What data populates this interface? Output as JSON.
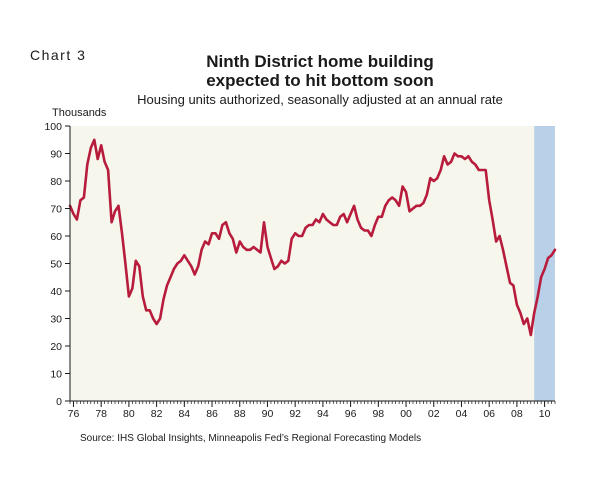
{
  "header": {
    "chart_label": "Chart 3",
    "title_line1": "Ninth District home building",
    "title_line2": "expected to hit bottom soon",
    "subtitle": "Housing units authorized, seasonally adjusted at an annual rate",
    "units_label": "Thousands"
  },
  "source": "Source: IHS Global Insights, Minneapolis Fed’s Regional Forecasting Models",
  "colors": {
    "line": "#b81c3c",
    "plot_background": "#f6f6ec",
    "forecast_band": "#b8d0e8",
    "axis": "#1a1a1a"
  },
  "chart_data": {
    "type": "line",
    "title": "Ninth District home building expected to hit bottom soon",
    "subtitle": "Housing units authorized, seasonally adjusted at an annual rate",
    "ylabel": "Thousands",
    "ylim": [
      0,
      100
    ],
    "yticks": [
      0,
      10,
      20,
      30,
      40,
      50,
      60,
      70,
      80,
      90,
      100
    ],
    "xlim": [
      1975.75,
      2010.75
    ],
    "xticks": [
      1976,
      1978,
      1980,
      1982,
      1984,
      1986,
      1988,
      1990,
      1992,
      1994,
      1996,
      1998,
      2000,
      2002,
      2004,
      2006,
      2008,
      2010
    ],
    "xtick_labels": [
      "76",
      "78",
      "80",
      "82",
      "84",
      "86",
      "88",
      "90",
      "92",
      "94",
      "96",
      "98",
      "00",
      "02",
      "04",
      "06",
      "08",
      "10"
    ],
    "forecast_start": 2009.25,
    "grid": false,
    "legend": "none",
    "x": [
      1975.75,
      1976.0,
      1976.25,
      1976.5,
      1976.75,
      1977.0,
      1977.25,
      1977.5,
      1977.75,
      1978.0,
      1978.25,
      1978.5,
      1978.75,
      1979.0,
      1979.25,
      1979.5,
      1979.75,
      1980.0,
      1980.25,
      1980.5,
      1980.75,
      1981.0,
      1981.25,
      1981.5,
      1981.75,
      1982.0,
      1982.25,
      1982.5,
      1982.75,
      1983.0,
      1983.25,
      1983.5,
      1983.75,
      1984.0,
      1984.25,
      1984.5,
      1984.75,
      1985.0,
      1985.25,
      1985.5,
      1985.75,
      1986.0,
      1986.25,
      1986.5,
      1986.75,
      1987.0,
      1987.25,
      1987.5,
      1987.75,
      1988.0,
      1988.25,
      1988.5,
      1988.75,
      1989.0,
      1989.25,
      1989.5,
      1989.75,
      1990.0,
      1990.25,
      1990.5,
      1990.75,
      1991.0,
      1991.25,
      1991.5,
      1991.75,
      1992.0,
      1992.25,
      1992.5,
      1992.75,
      1993.0,
      1993.25,
      1993.5,
      1993.75,
      1994.0,
      1994.25,
      1994.5,
      1994.75,
      1995.0,
      1995.25,
      1995.5,
      1995.75,
      1996.0,
      1996.25,
      1996.5,
      1996.75,
      1997.0,
      1997.25,
      1997.5,
      1997.75,
      1998.0,
      1998.25,
      1998.5,
      1998.75,
      1999.0,
      1999.25,
      1999.5,
      1999.75,
      2000.0,
      2000.25,
      2000.5,
      2000.75,
      2001.0,
      2001.25,
      2001.5,
      2001.75,
      2002.0,
      2002.25,
      2002.5,
      2002.75,
      2003.0,
      2003.25,
      2003.5,
      2003.75,
      2004.0,
      2004.25,
      2004.5,
      2004.75,
      2005.0,
      2005.25,
      2005.5,
      2005.75,
      2006.0,
      2006.25,
      2006.5,
      2006.75,
      2007.0,
      2007.25,
      2007.5,
      2007.75,
      2008.0,
      2008.25,
      2008.5,
      2008.75,
      2009.0,
      2009.25,
      2009.5,
      2009.75,
      2010.0,
      2010.25,
      2010.5,
      2010.75
    ],
    "values": [
      71,
      68,
      66,
      73,
      74,
      86,
      92,
      95,
      88,
      93,
      87,
      84,
      65,
      69,
      71,
      61,
      50,
      38,
      41,
      51,
      49,
      38,
      33,
      33,
      30,
      28,
      30,
      37,
      42,
      45,
      48,
      50,
      51,
      53,
      51,
      49,
      46,
      49,
      55,
      58,
      57,
      61,
      61,
      59,
      64,
      65,
      61,
      59,
      54,
      58,
      56,
      55,
      55,
      56,
      55,
      54,
      65,
      56,
      52,
      48,
      49,
      51,
      50,
      51,
      59,
      61,
      60,
      60,
      63,
      64,
      64,
      66,
      65,
      68,
      66,
      65,
      64,
      64,
      67,
      68,
      65,
      68,
      71,
      66,
      63,
      62,
      62,
      60,
      64,
      67,
      67,
      71,
      73,
      74,
      73,
      71,
      78,
      76,
      69,
      70,
      71,
      71,
      72,
      75,
      81,
      80,
      81,
      84,
      89,
      86,
      87,
      90,
      89,
      89,
      88,
      89,
      87,
      86,
      84,
      84,
      84,
      73,
      66,
      58,
      60,
      55,
      49,
      43,
      42,
      35,
      32,
      28,
      30,
      24,
      32,
      38,
      45,
      48,
      52,
      53,
      55
    ]
  }
}
